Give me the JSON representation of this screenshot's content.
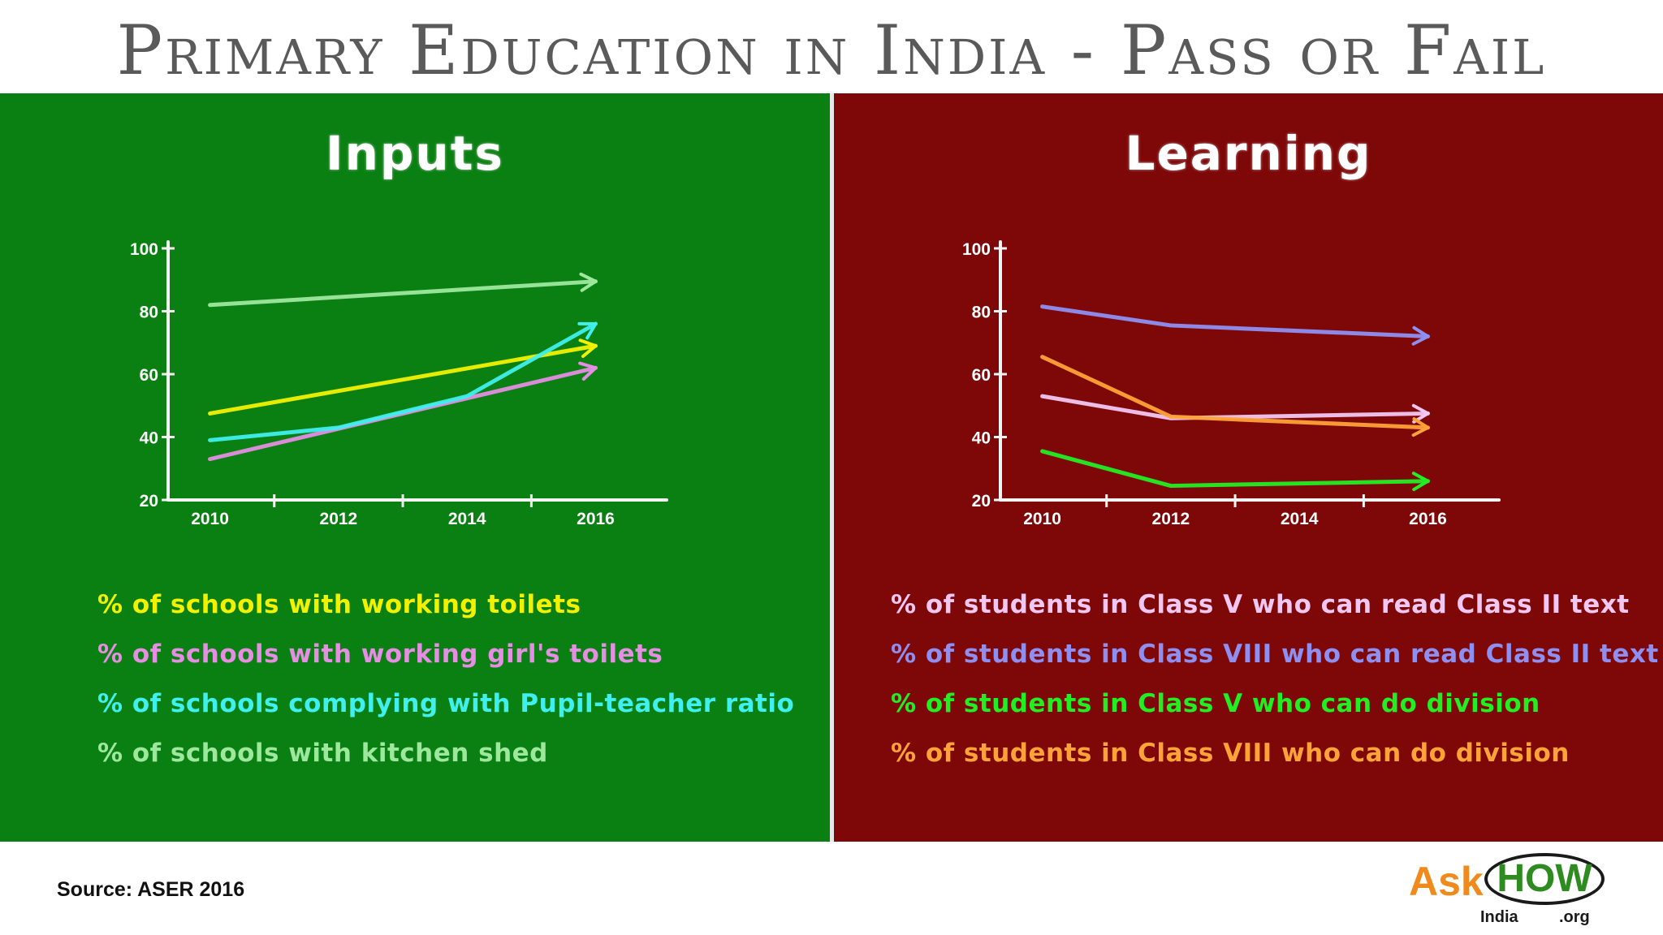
{
  "title": "Primary Education in India - Pass or Fail",
  "source": "Source: ASER 2016",
  "logo": {
    "ask": "Ask",
    "how": "HOW",
    "india": "India",
    "org": ".org"
  },
  "colors": {
    "inputs_bg": "#0a7f12",
    "learning_bg": "#7e0808",
    "axis": "#f4f4f4"
  },
  "chart_data": [
    {
      "type": "line",
      "title": "Inputs",
      "x": [
        2010,
        2016
      ],
      "xticks": [
        2010,
        2012,
        2014,
        2016
      ],
      "yticks": [
        20,
        40,
        60,
        80,
        100
      ],
      "xlim": [
        2009.5,
        2016.6
      ],
      "ylim": [
        20,
        100
      ],
      "grid": false,
      "legend_position": "bottom",
      "series": [
        {
          "name": "% of schools with working toilets",
          "color": "#f2f200",
          "x": [
            2010,
            2016
          ],
          "values": [
            47.5,
            69
          ]
        },
        {
          "name": "% of schools with working girl's toilets",
          "color": "#e58ee3",
          "x": [
            2010,
            2016
          ],
          "values": [
            33,
            62
          ]
        },
        {
          "name": "% of schools complying with Pupil-teacher ratio",
          "color": "#3ff0ee",
          "x": [
            2010,
            2012,
            2014,
            2016
          ],
          "values": [
            39,
            43,
            53,
            76
          ]
        },
        {
          "name": "% of schools with kitchen shed",
          "color": "#9ee89e",
          "x": [
            2010,
            2016
          ],
          "values": [
            82,
            89.5
          ]
        }
      ]
    },
    {
      "type": "line",
      "title": "Learning",
      "x": [
        2010,
        2012,
        2016
      ],
      "xticks": [
        2010,
        2012,
        2014,
        2016
      ],
      "yticks": [
        20,
        40,
        60,
        80,
        100
      ],
      "xlim": [
        2009.5,
        2016.6
      ],
      "ylim": [
        20,
        100
      ],
      "grid": false,
      "legend_position": "bottom",
      "series": [
        {
          "name": "% of students in Class V who can read Class II text",
          "color": "#f2c7f2",
          "x": [
            2010,
            2012,
            2016
          ],
          "values": [
            53,
            46,
            47.5
          ]
        },
        {
          "name": "% of students in Class VIII who can read Class II text",
          "color": "#8f8ff2",
          "x": [
            2010,
            2012,
            2016
          ],
          "values": [
            81.5,
            75.5,
            72
          ]
        },
        {
          "name": "% of students in Class V who can do division",
          "color": "#22ee22",
          "x": [
            2010,
            2012,
            2016
          ],
          "values": [
            35.5,
            24.5,
            26
          ]
        },
        {
          "name": "% of students in Class VIII who can do division",
          "color": "#ffa237",
          "x": [
            2010,
            2012,
            2016
          ],
          "values": [
            65.5,
            46.5,
            43
          ]
        }
      ]
    }
  ]
}
